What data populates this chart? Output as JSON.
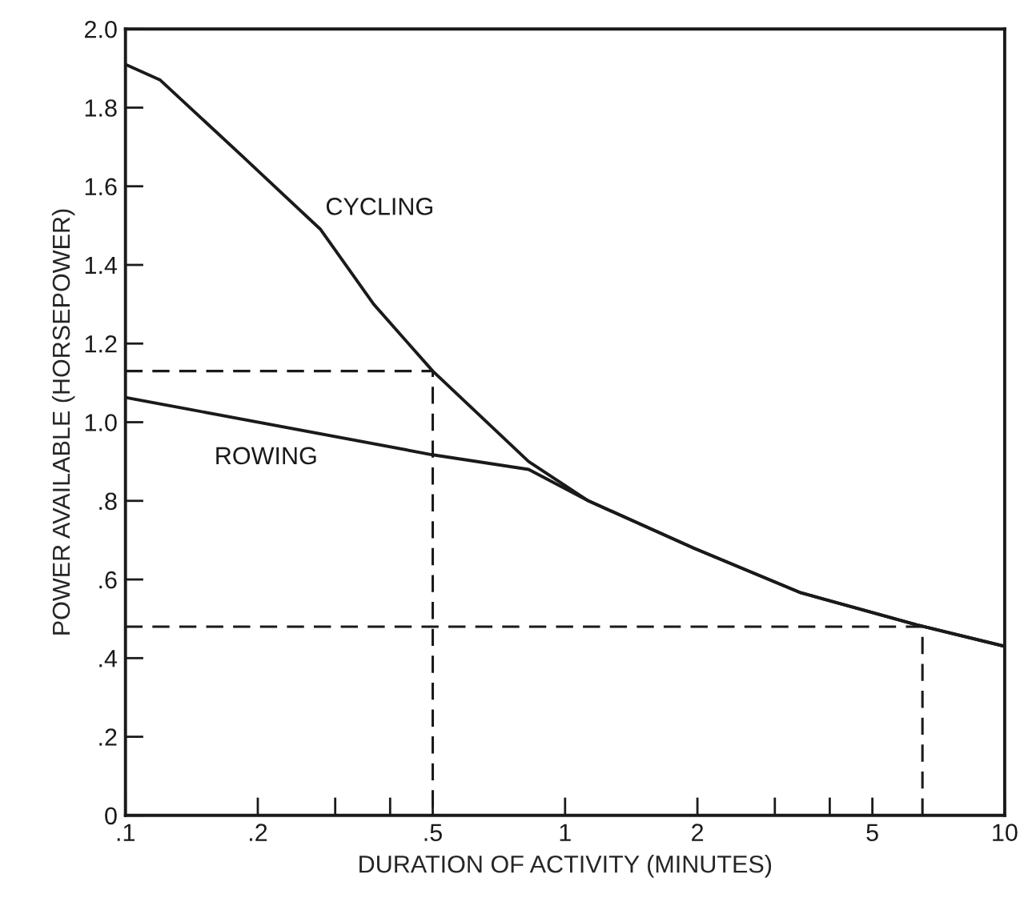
{
  "chart_data": {
    "type": "line",
    "xlabel": "DURATION OF ACTIVITY (MINUTES)",
    "ylabel": "POWER AVAILABLE (HORSEPOWER)",
    "log": "x",
    "xlim": [
      0.1,
      10
    ],
    "ylim": [
      0,
      2.0
    ],
    "xticks": [
      {
        "value": 0.1,
        "label": ".1"
      },
      {
        "value": 0.2,
        "label": ".2"
      },
      {
        "value": 0.3,
        "label": null
      },
      {
        "value": 0.4,
        "label": null
      },
      {
        "value": 0.5,
        "label": ".5"
      },
      1,
      2,
      {
        "value": 3,
        "label": null
      },
      {
        "value": 4,
        "label": null
      },
      5,
      10
    ],
    "yticks": [
      0,
      {
        "value": 0.2,
        "label": ".2"
      },
      {
        "value": 0.4,
        "label": ".4"
      },
      {
        "value": 0.6,
        "label": ".6"
      },
      {
        "value": 0.8,
        "label": ".8"
      },
      {
        "value": 1.0,
        "label": "1.0"
      },
      {
        "value": 1.2,
        "label": "1.2"
      },
      {
        "value": 1.4,
        "label": "1.4"
      },
      {
        "value": 1.6,
        "label": "1.6"
      },
      {
        "value": 1.8,
        "label": "1.8"
      },
      {
        "value": 2.0,
        "label": "2.0"
      }
    ],
    "grid": false,
    "legend": false,
    "marker": "none",
    "series": [
      {
        "name": "CYCLING",
        "color": "#1a1a1a",
        "line_style": "solid",
        "x": [
          0.1,
          0.12,
          0.183,
          0.278,
          0.367,
          0.5,
          0.826,
          1.13,
          1.96,
          3.44,
          6.3,
          10
        ],
        "values": [
          1.91,
          1.87,
          1.68,
          1.49,
          1.3,
          1.13,
          0.9,
          0.8,
          0.68,
          0.566,
          0.485,
          0.43
        ]
      },
      {
        "name": "ROWING",
        "color": "#1a1a1a",
        "line_style": "solid",
        "x": [
          0.1,
          0.5,
          0.826,
          1.13,
          1.96,
          3.44,
          6.3,
          10
        ],
        "values": [
          1.063,
          0.917,
          0.88,
          0.8,
          0.68,
          0.566,
          0.485,
          0.43
        ]
      },
      {
        "color": "#1a1a1a",
        "line_style": "dashed",
        "x": [
          0.1,
          0.5,
          0.5
        ],
        "values": [
          1.13,
          1.13,
          0
        ]
      },
      {
        "color": "#1a1a1a",
        "line_style": "dashed",
        "x": [
          0.1,
          6.5,
          6.5
        ],
        "values": [
          0.48,
          0.48,
          0
        ]
      }
    ]
  }
}
